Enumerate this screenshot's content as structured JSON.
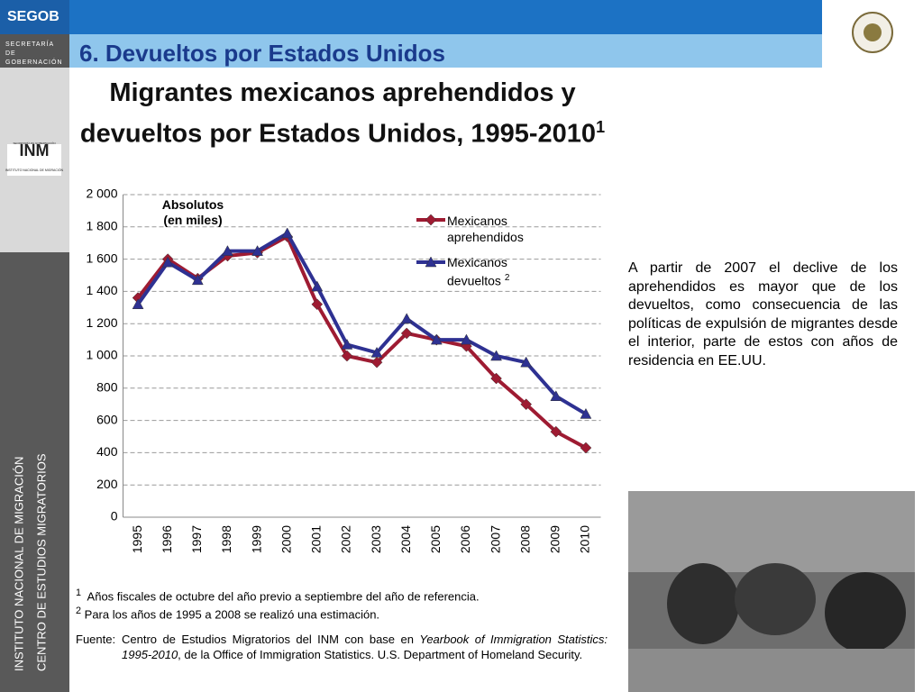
{
  "header": {
    "brand": "SEGOB",
    "ministry": "SECRETARÍA DE GOBERNACIÓN",
    "section": "6. Devueltos por Estados Unidos"
  },
  "sidebar": {
    "logo": "INM",
    "logo_top": "SECRETARÍA DE GOBERNACIÓN",
    "logo_bottom": "INSTITUTO NACIONAL DE MIGRACIÓN",
    "lines": [
      "INSTITUTO NACIONAL DE MIGRACIÓN",
      "CENTRO DE ESTUDIOS MIGRATORIOS"
    ]
  },
  "chart_data": {
    "type": "line",
    "title": "Migrantes mexicanos aprehendidos y devueltos por Estados Unidos, 1995-2010",
    "title_superscript": "1",
    "annotation": "Absolutos (en miles)",
    "categories": [
      "1995",
      "1996",
      "1997",
      "1998",
      "1999",
      "2000",
      "2001",
      "2002",
      "2003",
      "2004",
      "2005",
      "2006",
      "2007",
      "2008",
      "2009",
      "2010"
    ],
    "series": [
      {
        "name": "Mexicanos aprehendidos",
        "color": "#9e1b32",
        "marker": "diamond",
        "values": [
          1360,
          1600,
          1480,
          1620,
          1640,
          1740,
          1320,
          1000,
          960,
          1140,
          1100,
          1060,
          860,
          700,
          530,
          430
        ]
      },
      {
        "name": "Mexicanos devueltos",
        "superscript": "2",
        "color": "#2e3192",
        "marker": "triangle",
        "values": [
          1320,
          1580,
          1470,
          1650,
          1650,
          1760,
          1430,
          1070,
          1020,
          1230,
          1100,
          1100,
          1000,
          960,
          750,
          640
        ]
      }
    ],
    "ylim": [
      0,
      2000
    ],
    "yticks": [
      0,
      200,
      400,
      600,
      800,
      {
        "value": 1000,
        "label": "1 000"
      },
      {
        "value": 1200,
        "label": "1 200"
      },
      {
        "value": 1400,
        "label": "1 400"
      },
      {
        "value": 1600,
        "label": "1 600"
      },
      {
        "value": 1800,
        "label": "1 800"
      },
      {
        "value": 2000,
        "label": "2 000"
      }
    ],
    "grid": true
  },
  "commentary": "A partir de 2007 el declive de los aprehendidos es mayor que de los devueltos, como consecuencia de las políticas de expulsión de migrantes desde el interior, parte de estos con años de residencia en EE.UU.",
  "footnotes": [
    {
      "marker": "1",
      "text": "Años fiscales de octubre del año previo a septiembre del año de referencia."
    },
    {
      "marker": "2",
      "text": "Para los años de 1995 a 2008 se realizó una estimación."
    }
  ],
  "source": {
    "label": "Fuente:",
    "parts": [
      "Centro de Estudios Migratorios del INM con base en ",
      "Yearbook of Immigration Statistics: 1995-2010",
      ", de la Office of Immigration Statistics. U.S. Department of Homeland Security."
    ]
  }
}
